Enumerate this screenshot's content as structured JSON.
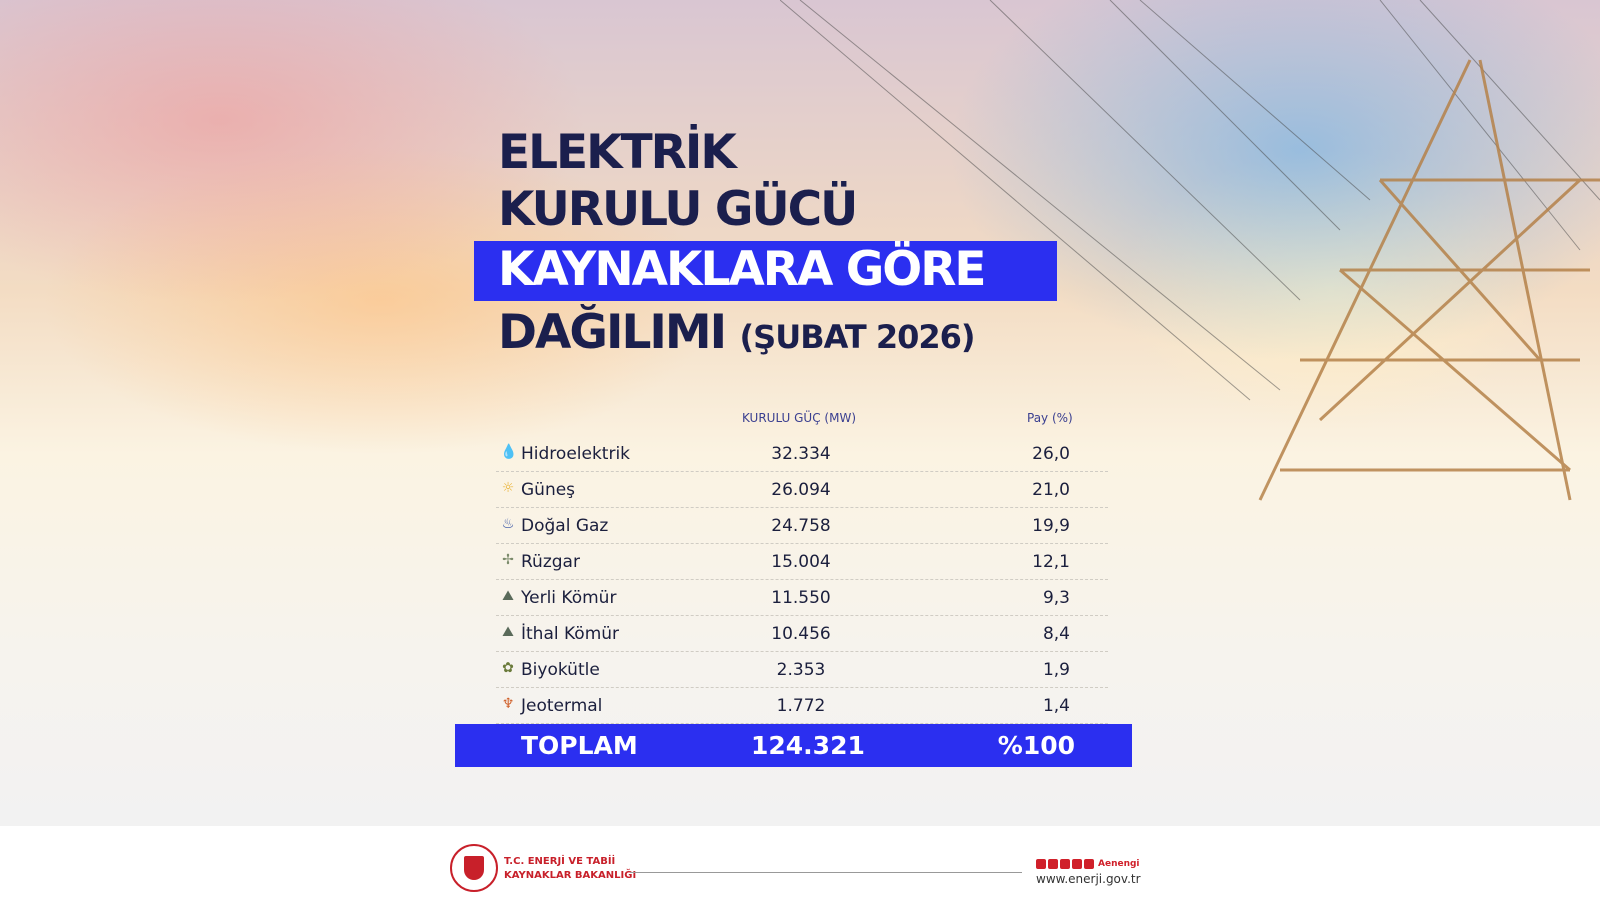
{
  "title": {
    "line1": "ELEKTRİK",
    "line2": "KURULU GÜCÜ",
    "line3": "KAYNAKLARA GÖRE",
    "line4": "DAĞILIMI",
    "period": "(ŞUBAT 2026)"
  },
  "table": {
    "headers": {
      "mw": "KURULU GÜÇ (MW)",
      "share": "Pay (%)"
    },
    "rows": [
      {
        "icon": "water-drop-icon",
        "glyph": "💧",
        "color": "#3aa7c9",
        "name": "Hidroelektrik",
        "mw": "32.334",
        "share": "26,0"
      },
      {
        "icon": "sun-icon",
        "glyph": "☼",
        "color": "#e8b030",
        "name": "Güneş",
        "mw": "26.094",
        "share": "21,0"
      },
      {
        "icon": "gas-flame-icon",
        "glyph": "♨",
        "color": "#2b4aa0",
        "name": "Doğal Gaz",
        "mw": "24.758",
        "share": "19,9"
      },
      {
        "icon": "wind-turbine-icon",
        "glyph": "✢",
        "color": "#7a8a6a",
        "name": "Rüzgar",
        "mw": "15.004",
        "share": "12,1"
      },
      {
        "icon": "coal-icon",
        "glyph": "⛰",
        "color": "#5a6a5a",
        "name": "Yerli Kömür",
        "mw": "11.550",
        "share": "9,3"
      },
      {
        "icon": "coal-import-icon",
        "glyph": "⛰",
        "color": "#5a6a5a",
        "name": "İthal Kömür",
        "mw": "10.456",
        "share": "8,4"
      },
      {
        "icon": "biomass-icon",
        "glyph": "✿",
        "color": "#6a7a3a",
        "name": "Biyokütle",
        "mw": "2.353",
        "share": "1,9"
      },
      {
        "icon": "geothermal-icon",
        "glyph": "♆",
        "color": "#d0602a",
        "name": "Jeotermal",
        "mw": "1.772",
        "share": "1,4"
      }
    ],
    "total": {
      "label": "TOPLAM",
      "mw": "124.321",
      "share": "%100"
    }
  },
  "colors": {
    "accent": "#2b2ff0",
    "title": "#1b1f4d",
    "brand": "#c8202a"
  },
  "footer": {
    "ministry_line1": "T.C. ENERJİ VE TABİİ",
    "ministry_line2": "KAYNAKLAR BAKANLIĞI",
    "social_handle": "Aenengi",
    "website": "www.enerji.gov.tr"
  }
}
